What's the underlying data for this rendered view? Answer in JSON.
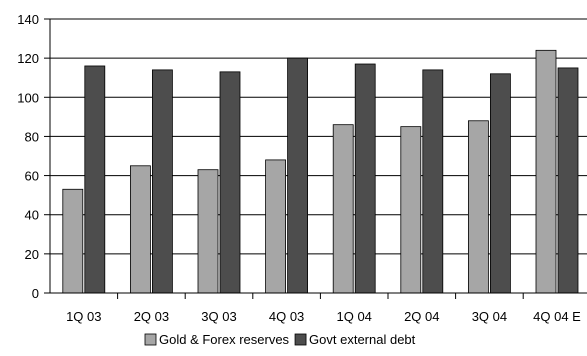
{
  "chart_data": {
    "type": "bar",
    "categories": [
      "1Q 03",
      "2Q 03",
      "3Q 03",
      "4Q 03",
      "1Q 04",
      "2Q 04",
      "3Q 04",
      "4Q 04 E"
    ],
    "series": [
      {
        "name": "Gold & Forex reserves",
        "color": "#a6a6a6",
        "values": [
          53,
          65,
          63,
          68,
          86,
          85,
          88,
          124
        ]
      },
      {
        "name": "Govt external debt",
        "color": "#4d4d4d",
        "values": [
          116,
          114,
          113,
          120,
          117,
          114,
          112,
          115
        ]
      }
    ],
    "ylim": [
      0,
      140
    ],
    "yticks": [
      0,
      20,
      40,
      60,
      80,
      100,
      120,
      140
    ],
    "grid": true,
    "legend_position": "bottom"
  }
}
